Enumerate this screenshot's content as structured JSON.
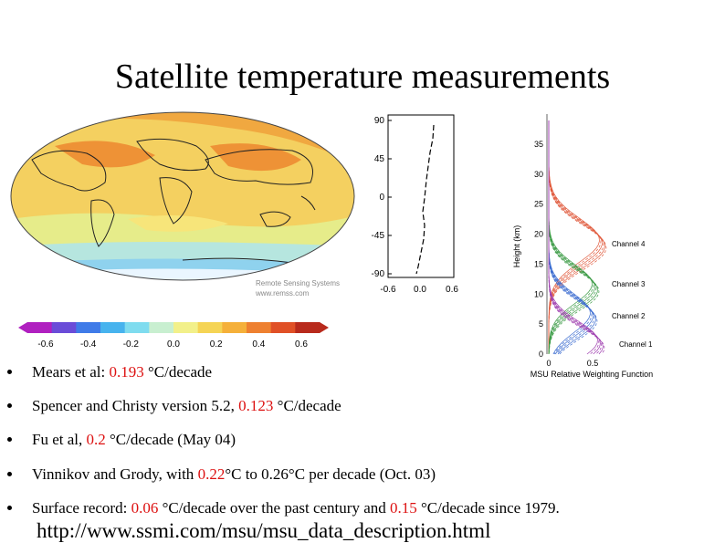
{
  "title": "Satellite temperature measurements",
  "map_credit": {
    "line1": "Remote Sensing Systems",
    "line2": "www.remss.com"
  },
  "colorbar": {
    "ticks": [
      "-0.6",
      "-0.4",
      "-0.2",
      "0.0",
      "0.2",
      "0.4",
      "0.6"
    ],
    "colors": [
      "#b020c0",
      "#6a4cd8",
      "#3f7be8",
      "#47b3ee",
      "#7fdcef",
      "#c8efd0",
      "#f2f08a",
      "#f5d455",
      "#f5b03a",
      "#ee8030",
      "#e05026",
      "#b82a1c"
    ]
  },
  "lat_plot": {
    "y_ticks": [
      "90",
      "45",
      "0",
      "-45",
      "-90"
    ],
    "x_ticks": [
      "-0.6",
      "0.0",
      "0.6"
    ]
  },
  "weighting_plot": {
    "y_label": "Height (km)",
    "y_ticks": [
      "35",
      "30",
      "25",
      "20",
      "15",
      "10",
      "5",
      "0"
    ],
    "x_ticks": [
      "0",
      "0.5"
    ],
    "x_label": "MSU Relative Weighting Function",
    "channels": [
      {
        "label": "Channel 4",
        "color": "#e0583a"
      },
      {
        "label": "Channel 3",
        "color": "#3a9a44"
      },
      {
        "label": "Channel 2",
        "color": "#3a6bd0"
      },
      {
        "label": "Channel 1",
        "color": "#a040b0"
      }
    ]
  },
  "bullets": [
    {
      "pre": "Mears et al: ",
      "r1": "0.193",
      "mid": " °C/decade",
      "r2": "",
      "post": ""
    },
    {
      "pre": "Spencer and Christy version 5.2, ",
      "r1": "0.123",
      "mid": " °C/decade",
      "r2": "",
      "post": ""
    },
    {
      "pre": "Fu et al, ",
      "r1": "0.2",
      "mid": " °C/decade (May 04)",
      "r2": "",
      "post": ""
    },
    {
      "pre": "Vinnikov and Grody, with ",
      "r1": "0.22",
      "mid": "°C to 0.26°C per decade (Oct. 03)",
      "r2": "",
      "post": ""
    },
    {
      "pre": "Surface record: ",
      "r1": "0.06",
      "mid": " °C/decade over the past century and ",
      "r2": "0.15",
      "post": " °C/decade since 1979."
    }
  ],
  "url": "http://www.ssmi.com/msu/msu_data_description.html",
  "colors": {
    "highlight": "#dd1111"
  }
}
